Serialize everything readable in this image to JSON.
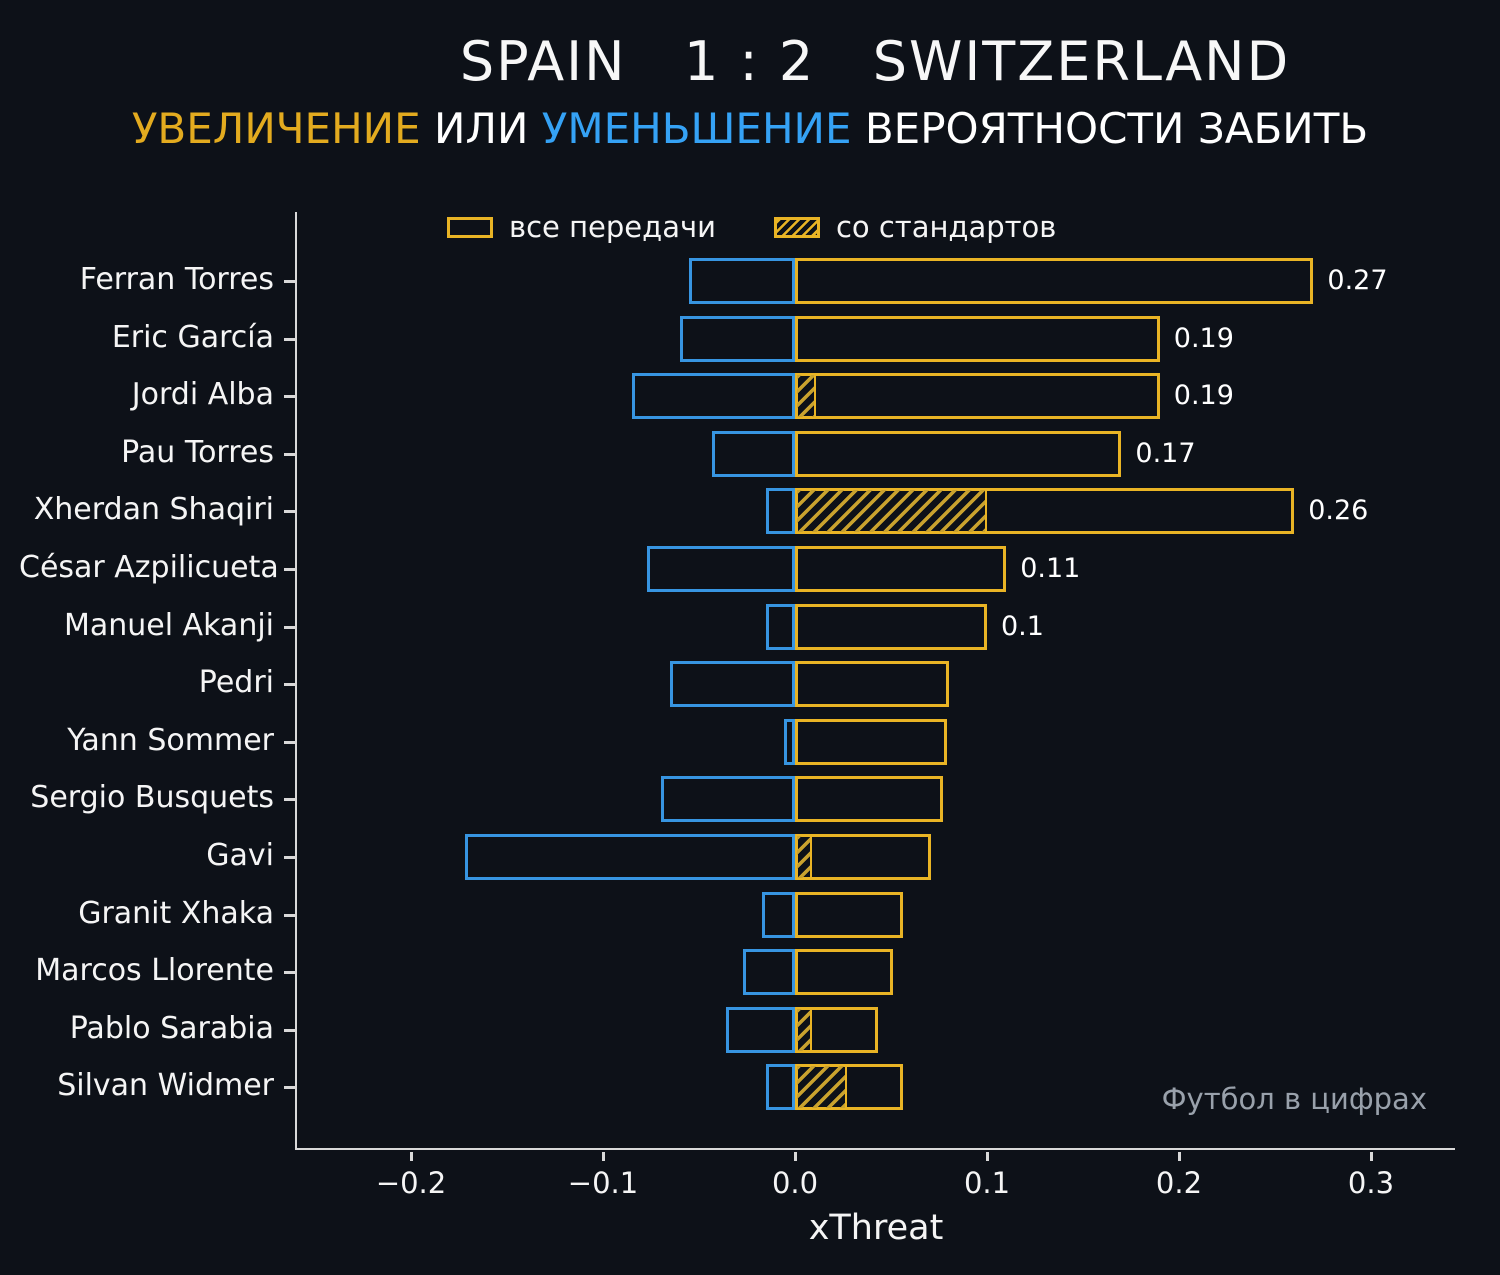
{
  "header": {
    "title": "SPAIN   1 : 2   SWITZERLAND",
    "subtitle_parts": [
      {
        "text": "УВЕЛИЧЕНИЕ",
        "color": "#e3ab1f"
      },
      {
        "text": " ИЛИ ",
        "color": "#ffffff"
      },
      {
        "text": "УМЕНЬШЕНИЕ",
        "color": "#35a2f5"
      },
      {
        "text": " ВЕРОЯТНОСТИ ЗАБИТЬ",
        "color": "#ffffff"
      }
    ]
  },
  "watermark": "Футбол в цифрах",
  "chart_data": {
    "type": "bar",
    "orientation": "horizontal",
    "title": "SPAIN 1 : 2 SWITZERLAND",
    "xlabel": "xThreat",
    "xlim": [
      -0.2594,
      0.3448
    ],
    "grid": false,
    "legend_position": "top-inside",
    "colors": {
      "increase": "#e9b425",
      "decrease": "#3795e1",
      "background": "#0d1118"
    },
    "x_ticks": [
      {
        "value": -0.2,
        "label": "−0.2"
      },
      {
        "value": -0.1,
        "label": "−0.1"
      },
      {
        "value": 0.0,
        "label": "0.0"
      },
      {
        "value": 0.1,
        "label": "0.1"
      },
      {
        "value": 0.2,
        "label": "0.2"
      },
      {
        "value": 0.3,
        "label": "0.3"
      }
    ],
    "series_meta": {
      "all_passes": {
        "label": "все передачи",
        "color": "#e9b425",
        "hatch": false
      },
      "set_pieces": {
        "label": "со стандартов",
        "color": "#e9b425",
        "hatch": true
      },
      "decrease": {
        "label": "уменьшение",
        "color": "#3795e1"
      }
    },
    "players": [
      {
        "name": "Ferran Torres",
        "decrease": -0.055,
        "increase": 0.27,
        "set_piece": 0,
        "value_label": "0.27"
      },
      {
        "name": "Eric García",
        "decrease": -0.06,
        "increase": 0.19,
        "set_piece": 0,
        "value_label": "0.19"
      },
      {
        "name": "Jordi Alba",
        "decrease": -0.085,
        "increase": 0.19,
        "set_piece": 0.011,
        "value_label": "0.19"
      },
      {
        "name": "Pau Torres",
        "decrease": -0.043,
        "increase": 0.17,
        "set_piece": 0,
        "value_label": "0.17"
      },
      {
        "name": "Xherdan Shaqiri",
        "decrease": -0.015,
        "increase": 0.26,
        "set_piece": 0.1,
        "value_label": "0.26"
      },
      {
        "name": "César Azpilicueta",
        "decrease": -0.077,
        "increase": 0.11,
        "set_piece": 0,
        "value_label": "0.11"
      },
      {
        "name": "Manuel Akanji",
        "decrease": -0.015,
        "increase": 0.1,
        "set_piece": 0,
        "value_label": "0.1"
      },
      {
        "name": "Pedri",
        "decrease": -0.065,
        "increase": 0.08,
        "set_piece": 0,
        "value_label": ""
      },
      {
        "name": "Yann Sommer",
        "decrease": -0.006,
        "increase": 0.079,
        "set_piece": 0,
        "value_label": ""
      },
      {
        "name": "Sergio Busquets",
        "decrease": -0.07,
        "increase": 0.077,
        "set_piece": 0,
        "value_label": ""
      },
      {
        "name": "Gavi",
        "decrease": -0.172,
        "increase": 0.071,
        "set_piece": 0.009,
        "value_label": ""
      },
      {
        "name": "Granit Xhaka",
        "decrease": -0.017,
        "increase": 0.056,
        "set_piece": 0,
        "value_label": ""
      },
      {
        "name": "Marcos Llorente",
        "decrease": -0.027,
        "increase": 0.051,
        "set_piece": 0,
        "value_label": ""
      },
      {
        "name": "Pablo Sarabia",
        "decrease": -0.036,
        "increase": 0.043,
        "set_piece": 0.009,
        "value_label": ""
      },
      {
        "name": "Silvan Widmer",
        "decrease": -0.015,
        "increase": 0.056,
        "set_piece": 0.027,
        "value_label": ""
      }
    ]
  }
}
